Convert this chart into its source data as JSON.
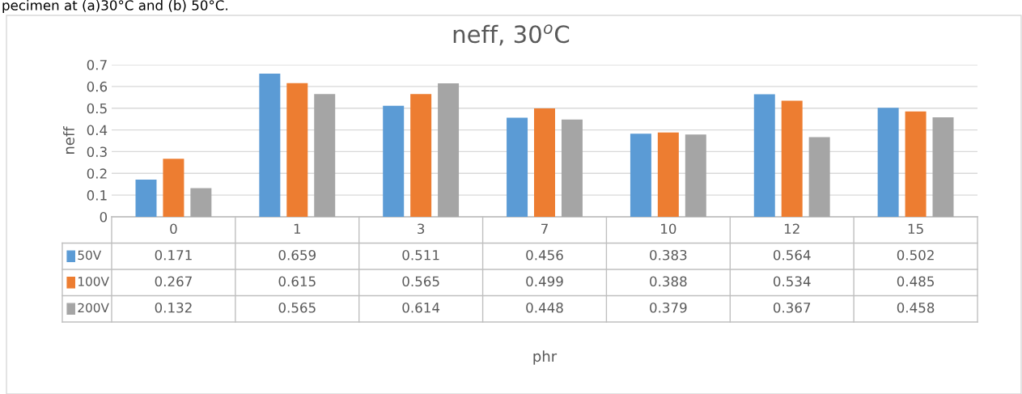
{
  "chart_data": {
    "type": "bar",
    "title": "neff, 30$^{o}$C",
    "ylabel": "neff",
    "annotations": [
      "pecimen at (a)30°C and (b) 50°C.",
      "phr"
    ],
    "categories": [
      "0",
      "1",
      "3",
      "7",
      "10",
      "12",
      "15"
    ],
    "series": [
      {
        "name": "50V",
        "color": "#5b9bd5",
        "values": [
          0.171,
          0.659,
          0.511,
          0.456,
          0.383,
          0.564,
          0.502
        ]
      },
      {
        "name": "100V",
        "color": "#ed7d31",
        "values": [
          0.267,
          0.615,
          0.565,
          0.499,
          0.388,
          0.534,
          0.485
        ]
      },
      {
        "name": "200V",
        "color": "#a5a5a5",
        "values": [
          0.132,
          0.565,
          0.614,
          0.448,
          0.379,
          0.367,
          0.458
        ]
      }
    ],
    "ylim": [
      0,
      0.7
    ],
    "yticks": [
      0,
      0.1,
      0.2,
      0.3,
      0.4,
      0.5,
      0.6,
      0.7
    ],
    "grid": "y",
    "legend": "bottom",
    "data_labels": true
  }
}
